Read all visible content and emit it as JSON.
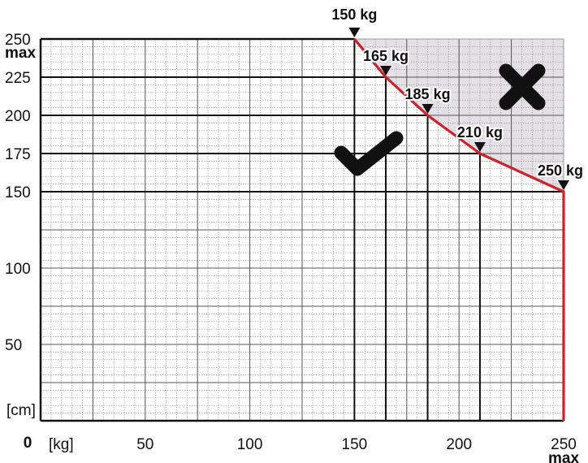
{
  "chart_data": {
    "type": "line",
    "title": "",
    "x_unit_label": "[kg]",
    "y_unit_label": "[cm]",
    "origin_label": "0",
    "x_max_label": "max",
    "y_max_label": "max",
    "xlim": [
      0,
      250
    ],
    "ylim": [
      0,
      250
    ],
    "x_ticks": [
      {
        "value": 50,
        "label": "50"
      },
      {
        "value": 100,
        "label": "100"
      },
      {
        "value": 150,
        "label": "150"
      },
      {
        "value": 200,
        "label": "200"
      },
      {
        "value": 250,
        "label": "250"
      }
    ],
    "y_ticks": [
      {
        "value": 50,
        "label": "50"
      },
      {
        "value": 100,
        "label": "100"
      },
      {
        "value": 150,
        "label": "150"
      },
      {
        "value": 175,
        "label": "175"
      },
      {
        "value": 200,
        "label": "200"
      },
      {
        "value": 225,
        "label": "225"
      },
      {
        "value": 250,
        "label": "250"
      }
    ],
    "grid": true,
    "series": [
      {
        "x": [
          150,
          165,
          185,
          210,
          250,
          250
        ],
        "y": [
          250,
          225,
          200,
          175,
          150,
          0
        ],
        "color": "#d0202a"
      }
    ],
    "points": [
      {
        "x": 150,
        "y": 250,
        "label": "150 kg"
      },
      {
        "x": 165,
        "y": 225,
        "label": "165 kg"
      },
      {
        "x": 185,
        "y": 200,
        "label": "185 kg"
      },
      {
        "x": 210,
        "y": 175,
        "label": "210 kg"
      },
      {
        "x": 250,
        "y": 150,
        "label": "250 kg"
      }
    ],
    "allowed_icon": "check-icon",
    "forbidden_icon": "cross-icon",
    "forbidden_region_color": "#e3e0e6",
    "line_color": "#d0202a"
  }
}
